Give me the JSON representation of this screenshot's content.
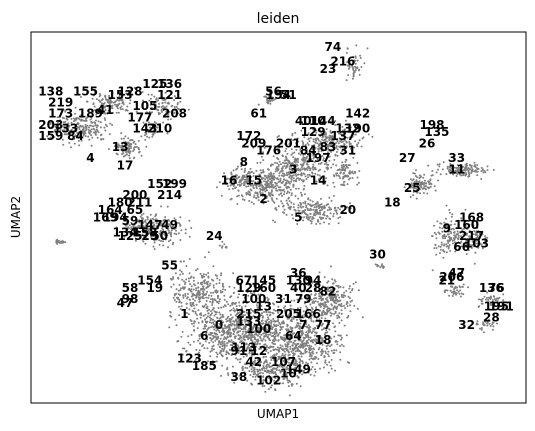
{
  "chart_data": {
    "type": "scatter",
    "title": "leiden",
    "xlabel": "UMAP1",
    "ylabel": "UMAP2",
    "legend": "on data",
    "grid": false,
    "point_color": "#7f7f7f",
    "cluster_labels": [
      {
        "label": "74",
        "x": 0.61,
        "y": 0.96
      },
      {
        "label": "216",
        "x": 0.63,
        "y": 0.92
      },
      {
        "label": "23",
        "x": 0.6,
        "y": 0.9
      },
      {
        "label": "138",
        "x": 0.04,
        "y": 0.84
      },
      {
        "label": "155",
        "x": 0.11,
        "y": 0.84
      },
      {
        "label": "219",
        "x": 0.06,
        "y": 0.81
      },
      {
        "label": "173",
        "x": 0.06,
        "y": 0.78
      },
      {
        "label": "189",
        "x": 0.12,
        "y": 0.78
      },
      {
        "label": "41",
        "x": 0.15,
        "y": 0.79
      },
      {
        "label": "153",
        "x": 0.18,
        "y": 0.83
      },
      {
        "label": "128",
        "x": 0.2,
        "y": 0.84
      },
      {
        "label": "125",
        "x": 0.25,
        "y": 0.86
      },
      {
        "label": "136",
        "x": 0.28,
        "y": 0.86
      },
      {
        "label": "121",
        "x": 0.28,
        "y": 0.83
      },
      {
        "label": "105",
        "x": 0.23,
        "y": 0.8
      },
      {
        "label": "208",
        "x": 0.29,
        "y": 0.78
      },
      {
        "label": "177",
        "x": 0.22,
        "y": 0.77
      },
      {
        "label": "143",
        "x": 0.23,
        "y": 0.74
      },
      {
        "label": "210",
        "x": 0.26,
        "y": 0.74
      },
      {
        "label": "203",
        "x": 0.04,
        "y": 0.75
      },
      {
        "label": "159",
        "x": 0.04,
        "y": 0.72
      },
      {
        "label": "133",
        "x": 0.07,
        "y": 0.74
      },
      {
        "label": "84",
        "x": 0.09,
        "y": 0.72
      },
      {
        "label": "13",
        "x": 0.18,
        "y": 0.69
      },
      {
        "label": "4",
        "x": 0.12,
        "y": 0.66
      },
      {
        "label": "17",
        "x": 0.19,
        "y": 0.64
      },
      {
        "label": "61",
        "x": 0.46,
        "y": 0.78
      },
      {
        "label": "56",
        "x": 0.49,
        "y": 0.84
      },
      {
        "label": "154",
        "x": 0.5,
        "y": 0.83
      },
      {
        "label": "51",
        "x": 0.52,
        "y": 0.83
      },
      {
        "label": "172",
        "x": 0.44,
        "y": 0.72
      },
      {
        "label": "209",
        "x": 0.45,
        "y": 0.7
      },
      {
        "label": "8",
        "x": 0.43,
        "y": 0.65
      },
      {
        "label": "176",
        "x": 0.48,
        "y": 0.68
      },
      {
        "label": "201",
        "x": 0.52,
        "y": 0.7
      },
      {
        "label": "40",
        "x": 0.55,
        "y": 0.76
      },
      {
        "label": "110",
        "x": 0.57,
        "y": 0.76
      },
      {
        "label": "144",
        "x": 0.59,
        "y": 0.76
      },
      {
        "label": "129",
        "x": 0.57,
        "y": 0.73
      },
      {
        "label": "142",
        "x": 0.66,
        "y": 0.78
      },
      {
        "label": "132",
        "x": 0.64,
        "y": 0.74
      },
      {
        "label": "190",
        "x": 0.66,
        "y": 0.74
      },
      {
        "label": "137",
        "x": 0.63,
        "y": 0.72
      },
      {
        "label": "84",
        "x": 0.56,
        "y": 0.68
      },
      {
        "label": "83",
        "x": 0.6,
        "y": 0.69
      },
      {
        "label": "31",
        "x": 0.64,
        "y": 0.68
      },
      {
        "label": "197",
        "x": 0.58,
        "y": 0.66
      },
      {
        "label": "3",
        "x": 0.53,
        "y": 0.63
      },
      {
        "label": "14",
        "x": 0.58,
        "y": 0.6
      },
      {
        "label": "16",
        "x": 0.4,
        "y": 0.6
      },
      {
        "label": "15",
        "x": 0.45,
        "y": 0.6
      },
      {
        "label": "2",
        "x": 0.47,
        "y": 0.55
      },
      {
        "label": "5",
        "x": 0.54,
        "y": 0.5
      },
      {
        "label": "20",
        "x": 0.64,
        "y": 0.52
      },
      {
        "label": "198",
        "x": 0.81,
        "y": 0.75
      },
      {
        "label": "135",
        "x": 0.82,
        "y": 0.73
      },
      {
        "label": "26",
        "x": 0.8,
        "y": 0.7
      },
      {
        "label": "33",
        "x": 0.86,
        "y": 0.66
      },
      {
        "label": "27",
        "x": 0.76,
        "y": 0.66
      },
      {
        "label": "11",
        "x": 0.86,
        "y": 0.63
      },
      {
        "label": "25",
        "x": 0.77,
        "y": 0.58
      },
      {
        "label": "18",
        "x": 0.73,
        "y": 0.54
      },
      {
        "label": "9",
        "x": 0.84,
        "y": 0.47
      },
      {
        "label": "168",
        "x": 0.89,
        "y": 0.5
      },
      {
        "label": "160",
        "x": 0.88,
        "y": 0.48
      },
      {
        "label": "217",
        "x": 0.89,
        "y": 0.45
      },
      {
        "label": "66",
        "x": 0.87,
        "y": 0.42
      },
      {
        "label": "103",
        "x": 0.9,
        "y": 0.43
      },
      {
        "label": "30",
        "x": 0.7,
        "y": 0.4
      },
      {
        "label": "47",
        "x": 0.86,
        "y": 0.35
      },
      {
        "label": "206",
        "x": 0.85,
        "y": 0.34
      },
      {
        "label": "21",
        "x": 0.84,
        "y": 0.33
      },
      {
        "label": "136",
        "x": 0.93,
        "y": 0.31
      },
      {
        "label": "76",
        "x": 0.94,
        "y": 0.31
      },
      {
        "label": "195",
        "x": 0.94,
        "y": 0.26
      },
      {
        "label": "191",
        "x": 0.95,
        "y": 0.26
      },
      {
        "label": "28",
        "x": 0.93,
        "y": 0.23
      },
      {
        "label": "32",
        "x": 0.88,
        "y": 0.21
      },
      {
        "label": "200",
        "x": 0.21,
        "y": 0.56
      },
      {
        "label": "152",
        "x": 0.26,
        "y": 0.59
      },
      {
        "label": "199",
        "x": 0.29,
        "y": 0.59
      },
      {
        "label": "214",
        "x": 0.28,
        "y": 0.56
      },
      {
        "label": "180",
        "x": 0.18,
        "y": 0.54
      },
      {
        "label": "211",
        "x": 0.22,
        "y": 0.54
      },
      {
        "label": "164",
        "x": 0.16,
        "y": 0.52
      },
      {
        "label": "65",
        "x": 0.21,
        "y": 0.52
      },
      {
        "label": "169",
        "x": 0.15,
        "y": 0.5
      },
      {
        "label": "194",
        "x": 0.17,
        "y": 0.5
      },
      {
        "label": "59",
        "x": 0.2,
        "y": 0.49
      },
      {
        "label": "147",
        "x": 0.24,
        "y": 0.48
      },
      {
        "label": "49",
        "x": 0.28,
        "y": 0.48
      },
      {
        "label": "134",
        "x": 0.19,
        "y": 0.46
      },
      {
        "label": "158",
        "x": 0.23,
        "y": 0.46
      },
      {
        "label": "125",
        "x": 0.2,
        "y": 0.45
      },
      {
        "label": "29",
        "x": 0.24,
        "y": 0.45
      },
      {
        "label": "50",
        "x": 0.26,
        "y": 0.45
      },
      {
        "label": "24",
        "x": 0.37,
        "y": 0.45
      },
      {
        "label": "55",
        "x": 0.28,
        "y": 0.37
      },
      {
        "label": "154",
        "x": 0.24,
        "y": 0.33
      },
      {
        "label": "58",
        "x": 0.2,
        "y": 0.31
      },
      {
        "label": "19",
        "x": 0.25,
        "y": 0.31
      },
      {
        "label": "98",
        "x": 0.2,
        "y": 0.28
      },
      {
        "label": "47",
        "x": 0.19,
        "y": 0.27
      },
      {
        "label": "1",
        "x": 0.31,
        "y": 0.24
      },
      {
        "label": "0",
        "x": 0.38,
        "y": 0.21
      },
      {
        "label": "6",
        "x": 0.35,
        "y": 0.18
      },
      {
        "label": "123",
        "x": 0.32,
        "y": 0.12
      },
      {
        "label": "185",
        "x": 0.35,
        "y": 0.1
      },
      {
        "label": "38",
        "x": 0.42,
        "y": 0.07
      },
      {
        "label": "102",
        "x": 0.48,
        "y": 0.06
      },
      {
        "label": "67",
        "x": 0.43,
        "y": 0.33
      },
      {
        "label": "145",
        "x": 0.47,
        "y": 0.33
      },
      {
        "label": "36",
        "x": 0.54,
        "y": 0.35
      },
      {
        "label": "130",
        "x": 0.54,
        "y": 0.33
      },
      {
        "label": "94",
        "x": 0.57,
        "y": 0.33
      },
      {
        "label": "129",
        "x": 0.44,
        "y": 0.31
      },
      {
        "label": "160",
        "x": 0.47,
        "y": 0.31
      },
      {
        "label": "40",
        "x": 0.54,
        "y": 0.31
      },
      {
        "label": "28",
        "x": 0.57,
        "y": 0.31
      },
      {
        "label": "82",
        "x": 0.6,
        "y": 0.3
      },
      {
        "label": "100",
        "x": 0.45,
        "y": 0.28
      },
      {
        "label": "31",
        "x": 0.51,
        "y": 0.28
      },
      {
        "label": "79",
        "x": 0.55,
        "y": 0.28
      },
      {
        "label": "13",
        "x": 0.47,
        "y": 0.26
      },
      {
        "label": "215",
        "x": 0.44,
        "y": 0.24
      },
      {
        "label": "205",
        "x": 0.52,
        "y": 0.24
      },
      {
        "label": "166",
        "x": 0.56,
        "y": 0.24
      },
      {
        "label": "133",
        "x": 0.44,
        "y": 0.22
      },
      {
        "label": "7",
        "x": 0.55,
        "y": 0.21
      },
      {
        "label": "77",
        "x": 0.59,
        "y": 0.21
      },
      {
        "label": "100",
        "x": 0.46,
        "y": 0.2
      },
      {
        "label": "64",
        "x": 0.53,
        "y": 0.18
      },
      {
        "label": "18",
        "x": 0.59,
        "y": 0.17
      },
      {
        "label": "113",
        "x": 0.43,
        "y": 0.15
      },
      {
        "label": "91",
        "x": 0.42,
        "y": 0.14
      },
      {
        "label": "12",
        "x": 0.46,
        "y": 0.14
      },
      {
        "label": "42",
        "x": 0.45,
        "y": 0.11
      },
      {
        "label": "107",
        "x": 0.51,
        "y": 0.11
      },
      {
        "label": "149",
        "x": 0.54,
        "y": 0.09
      },
      {
        "label": "10",
        "x": 0.52,
        "y": 0.08
      }
    ]
  }
}
